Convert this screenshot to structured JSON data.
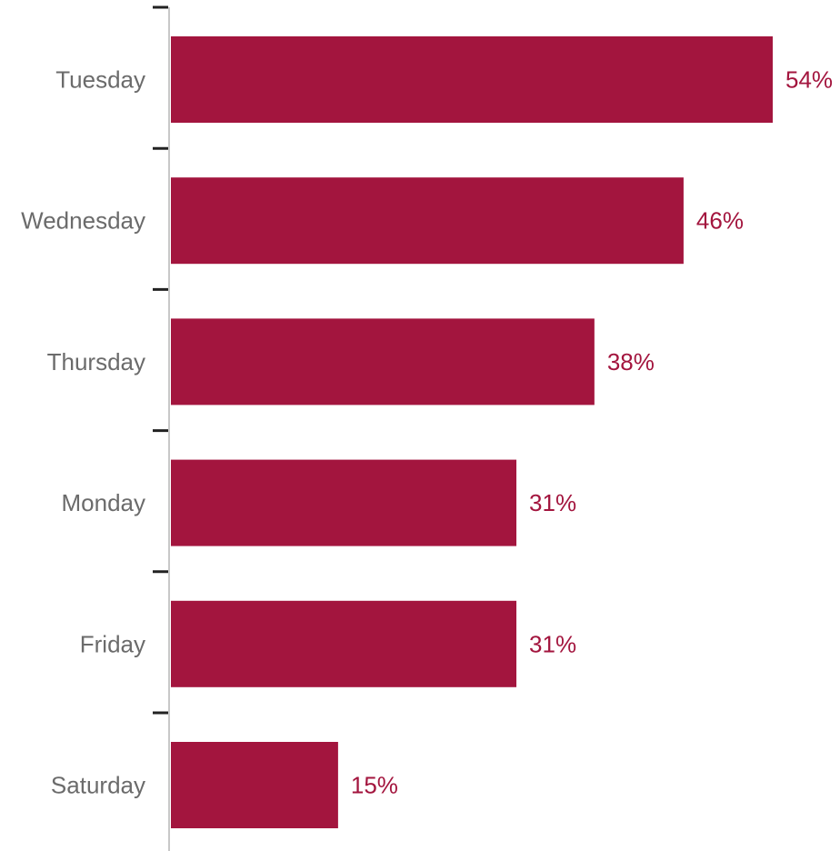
{
  "chart_data": {
    "type": "bar",
    "orientation": "horizontal",
    "categories": [
      "Tuesday",
      "Wednesday",
      "Thursday",
      "Monday",
      "Friday",
      "Saturday"
    ],
    "values": [
      54,
      46,
      38,
      31,
      31,
      15
    ],
    "value_labels": [
      "54%",
      "46%",
      "38%",
      "31%",
      "31%",
      "15%"
    ],
    "unit": "%",
    "title": "",
    "xlabel": "",
    "ylabel": "",
    "xlim": [
      0,
      54
    ],
    "grid": false,
    "legend": "none",
    "colors": {
      "bar": "#a3153e",
      "value_label": "#a3153e",
      "category_label": "#6b6b6b",
      "axis_line": "#c8c8c8",
      "tick": "#222222"
    }
  }
}
